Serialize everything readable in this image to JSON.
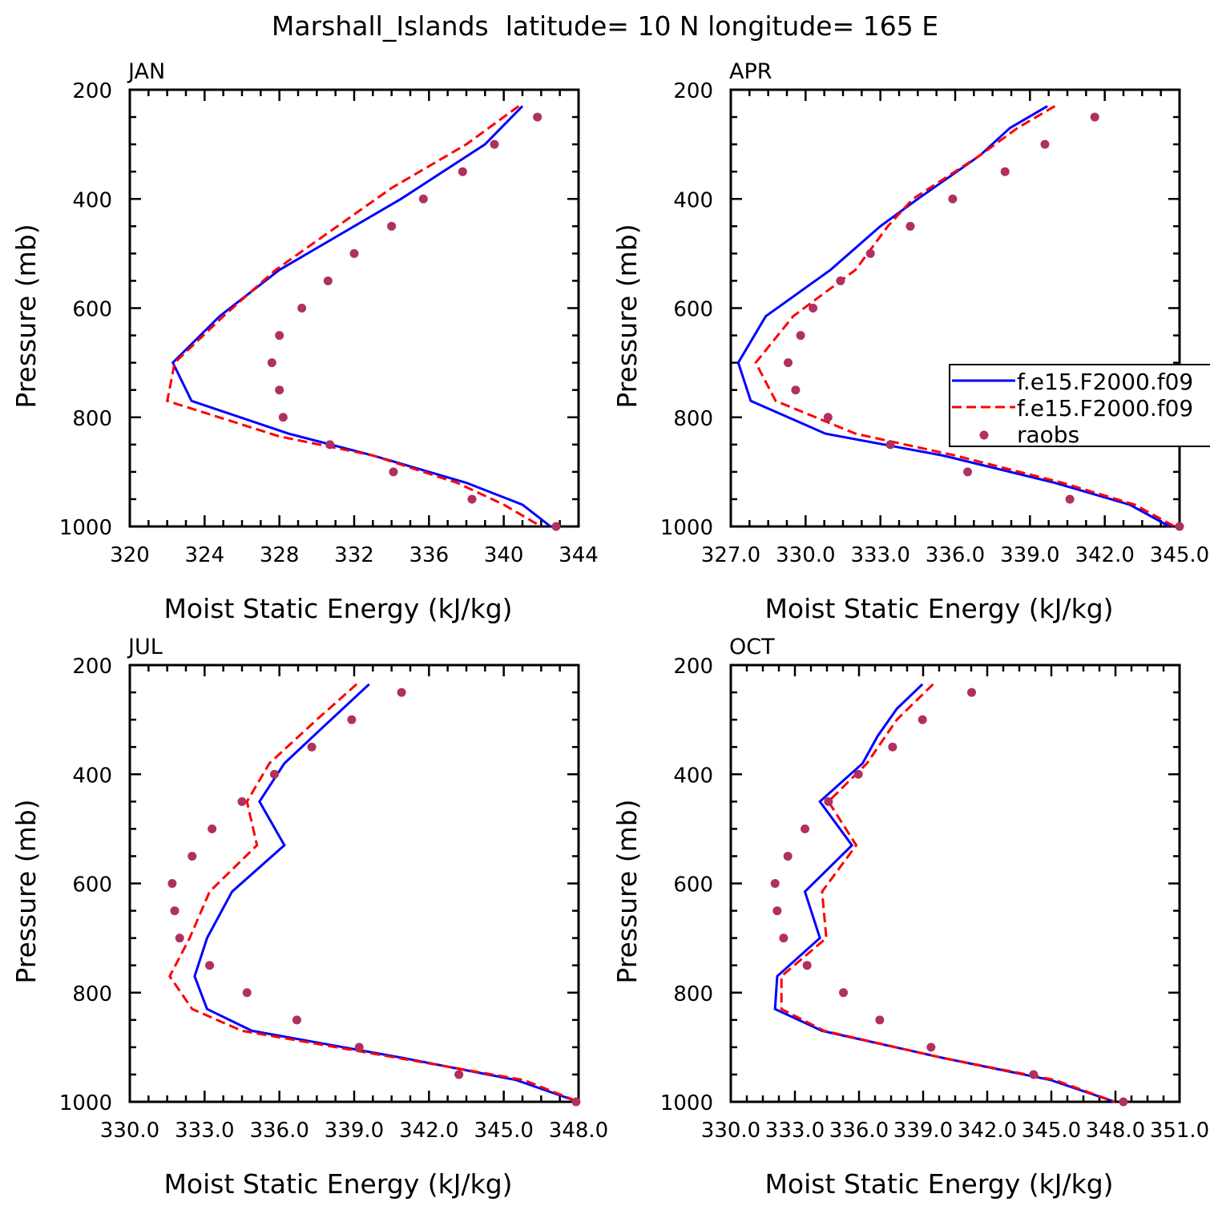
{
  "title": "Marshall_Islands  latitude= 10 N longitude= 165 E",
  "legend": {
    "entries": [
      {
        "label": "f.e15.F2000.f09",
        "style": "solid",
        "color": "#0000ff"
      },
      {
        "label": "f.e15.F2000.f09",
        "style": "dashed",
        "color": "#ff0000"
      },
      {
        "label": "raobs",
        "style": "dot",
        "color": "#b03060"
      }
    ]
  },
  "colors": {
    "model_solid": "#0000ff",
    "model_dashed": "#ff0000",
    "raobs": "#b03060"
  },
  "chart_data": [
    {
      "type": "line",
      "title": "JAN",
      "xlabel": "Moist Static Energy (kJ/kg)",
      "ylabel": "Pressure (mb)",
      "xlim": [
        320,
        344
      ],
      "ylim": [
        200,
        1000
      ],
      "xticks": [
        320,
        324,
        328,
        332,
        336,
        340,
        344
      ],
      "xticklabels": [
        "320",
        "324",
        "328",
        "332",
        "336",
        "340",
        "344"
      ],
      "yticks": [
        200,
        400,
        600,
        800,
        1000
      ],
      "yticklabels": [
        "200",
        "400",
        "600",
        "800",
        "1000"
      ],
      "series": [
        {
          "name": "f.e15.F2000.f09",
          "style": "solid",
          "pressure": [
            230,
            300,
            400,
            530,
            615,
            700,
            770,
            830,
            870,
            920,
            960,
            1000
          ],
          "mse": [
            341.0,
            339.0,
            334.5,
            328.0,
            324.8,
            322.3,
            323.3,
            328.5,
            333.0,
            338.0,
            341.0,
            342.5
          ]
        },
        {
          "name": "f.e15.F2000.f09",
          "style": "dashed",
          "pressure": [
            230,
            300,
            380,
            530,
            615,
            700,
            770,
            835,
            870,
            920,
            960,
            1000
          ],
          "mse": [
            340.8,
            338.0,
            334.0,
            327.8,
            325.0,
            322.4,
            322.0,
            328.0,
            333.0,
            337.5,
            340.0,
            342.0
          ]
        },
        {
          "name": "raobs",
          "style": "dot",
          "pressure": [
            250,
            300,
            350,
            400,
            450,
            500,
            550,
            600,
            650,
            700,
            750,
            800,
            850,
            900,
            950,
            1000
          ],
          "mse": [
            341.8,
            339.5,
            337.8,
            335.7,
            334.0,
            332.0,
            330.6,
            329.2,
            328.0,
            327.6,
            328.0,
            328.2,
            330.7,
            334.1,
            338.3,
            342.8
          ]
        }
      ]
    },
    {
      "type": "line",
      "title": "APR",
      "xlabel": "Moist Static Energy (kJ/kg)",
      "ylabel": "Pressure (mb)",
      "xlim": [
        327,
        345
      ],
      "ylim": [
        200,
        1000
      ],
      "xticks": [
        327,
        330,
        333,
        336,
        339,
        342,
        345
      ],
      "xticklabels": [
        "327.0",
        "330.0",
        "333.0",
        "336.0",
        "339.0",
        "342.0",
        "345.0"
      ],
      "yticks": [
        200,
        400,
        600,
        800,
        1000
      ],
      "yticklabels": [
        "200",
        "400",
        "600",
        "800",
        "1000"
      ],
      "series": [
        {
          "name": "f.e15.F2000.f09",
          "style": "solid",
          "pressure": [
            230,
            270,
            320,
            400,
            450,
            530,
            615,
            700,
            770,
            830,
            870,
            920,
            960,
            1000
          ],
          "mse": [
            339.7,
            338.2,
            337.0,
            334.5,
            333.0,
            331.0,
            328.4,
            327.3,
            327.8,
            330.8,
            335.5,
            340.0,
            343.0,
            344.6
          ]
        },
        {
          "name": "f.e15.F2000.f09",
          "style": "dashed",
          "pressure": [
            230,
            270,
            320,
            400,
            450,
            530,
            615,
            700,
            770,
            830,
            870,
            920,
            960,
            1000
          ],
          "mse": [
            340.0,
            338.5,
            337.0,
            334.3,
            333.3,
            332.0,
            329.5,
            328.0,
            328.8,
            332.0,
            336.0,
            340.3,
            343.2,
            344.8
          ]
        },
        {
          "name": "raobs",
          "style": "dot",
          "pressure": [
            250,
            300,
            350,
            400,
            450,
            500,
            550,
            600,
            650,
            700,
            750,
            800,
            850,
            900,
            950,
            1000
          ],
          "mse": [
            341.6,
            339.6,
            338.0,
            335.9,
            334.2,
            332.6,
            331.4,
            330.3,
            329.8,
            329.3,
            329.6,
            330.9,
            333.4,
            336.5,
            340.6,
            345.0
          ]
        }
      ]
    },
    {
      "type": "line",
      "title": "JUL",
      "xlabel": "Moist Static Energy (kJ/kg)",
      "ylabel": "Pressure (mb)",
      "xlim": [
        330,
        348
      ],
      "ylim": [
        200,
        1000
      ],
      "xticks": [
        330,
        333,
        336,
        339,
        342,
        345,
        348
      ],
      "xticklabels": [
        "330.0",
        "333.0",
        "336.0",
        "339.0",
        "342.0",
        "345.0",
        "348.0"
      ],
      "yticks": [
        200,
        400,
        600,
        800,
        1000
      ],
      "yticklabels": [
        "200",
        "400",
        "600",
        "800",
        "1000"
      ],
      "series": [
        {
          "name": "f.e15.F2000.f09",
          "style": "solid",
          "pressure": [
            235,
            320,
            380,
            450,
            530,
            615,
            700,
            770,
            830,
            870,
            920,
            960,
            1000
          ],
          "mse": [
            339.6,
            337.6,
            336.2,
            335.2,
            336.2,
            334.1,
            333.1,
            332.6,
            333.1,
            334.9,
            341.0,
            345.5,
            348.0
          ]
        },
        {
          "name": "f.e15.F2000.f09",
          "style": "dashed",
          "pressure": [
            235,
            300,
            380,
            450,
            530,
            615,
            700,
            770,
            830,
            870,
            920,
            960,
            1000
          ],
          "mse": [
            339.1,
            337.5,
            335.6,
            334.7,
            335.1,
            333.2,
            332.4,
            331.6,
            332.5,
            334.5,
            340.8,
            345.8,
            348.0
          ]
        },
        {
          "name": "raobs",
          "style": "dot",
          "pressure": [
            250,
            300,
            350,
            400,
            450,
            500,
            550,
            600,
            650,
            700,
            750,
            800,
            850,
            900,
            950,
            1000
          ],
          "mse": [
            340.9,
            338.9,
            337.3,
            335.8,
            334.5,
            333.3,
            332.5,
            331.7,
            331.8,
            332.0,
            333.2,
            334.7,
            336.7,
            339.2,
            343.2,
            347.9
          ]
        }
      ]
    },
    {
      "type": "line",
      "title": "OCT",
      "xlabel": "Moist Static Energy (kJ/kg)",
      "ylabel": "Pressure (mb)",
      "xlim": [
        330.03,
        351.03
      ],
      "ylim": [
        200,
        1000
      ],
      "xticks": [
        330.03,
        333.03,
        336.03,
        339.03,
        342.03,
        345.03,
        348.03,
        351.03
      ],
      "xticklabels": [
        "330.0",
        "333.0",
        "336.0",
        "339.0",
        "342.0",
        "345.0",
        "348.0",
        "351.0"
      ],
      "yticks": [
        200,
        400,
        600,
        800,
        1000
      ],
      "yticklabels": [
        "200",
        "400",
        "600",
        "800",
        "1000"
      ],
      "series": [
        {
          "name": "f.e15.F2000.f09",
          "style": "solid",
          "pressure": [
            235,
            280,
            330,
            380,
            450,
            530,
            615,
            700,
            770,
            830,
            870,
            920,
            960,
            1000
          ],
          "mse": [
            339.0,
            337.8,
            336.9,
            336.2,
            334.2,
            335.7,
            333.5,
            334.2,
            332.2,
            332.1,
            334.3,
            340.0,
            345.0,
            348.0
          ]
        },
        {
          "name": "f.e15.F2000.f09",
          "style": "dashed",
          "pressure": [
            235,
            300,
            380,
            450,
            530,
            615,
            700,
            770,
            830,
            870,
            920,
            960,
            1000
          ],
          "mse": [
            339.5,
            337.8,
            336.4,
            334.6,
            335.9,
            334.3,
            334.5,
            332.4,
            332.4,
            334.4,
            340.0,
            345.2,
            348.0
          ]
        },
        {
          "name": "raobs",
          "style": "dot",
          "pressure": [
            250,
            300,
            350,
            400,
            450,
            500,
            550,
            600,
            650,
            700,
            750,
            800,
            850,
            900,
            950,
            1000
          ],
          "mse": [
            341.3,
            339.0,
            337.6,
            336.0,
            334.6,
            333.5,
            332.7,
            332.1,
            332.2,
            332.5,
            333.6,
            335.3,
            337.0,
            339.4,
            344.2,
            348.4
          ]
        }
      ]
    }
  ]
}
